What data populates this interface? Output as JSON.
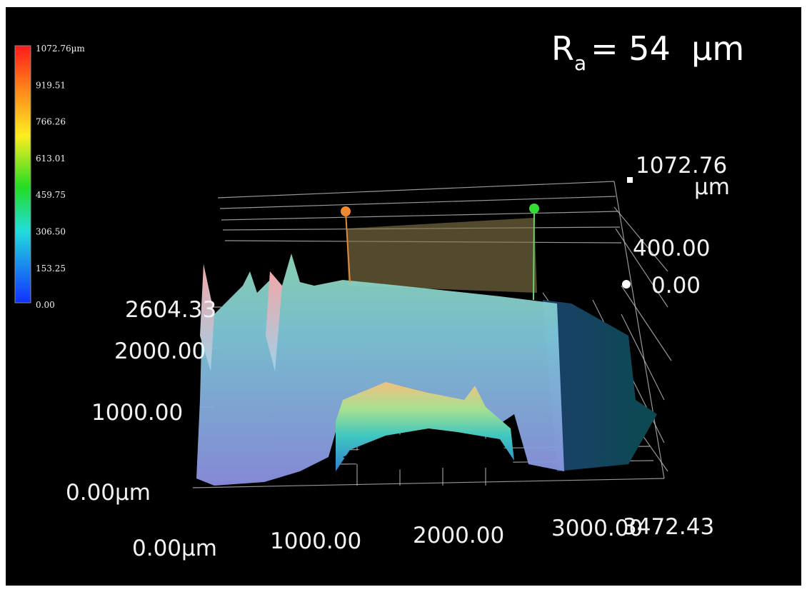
{
  "title": {
    "symbol": "R",
    "subscript": "a",
    "value": "= 54  µm"
  },
  "colorbar": {
    "labels": [
      "1072.76µm",
      "919.51",
      "766.26",
      "613.01",
      "459.75",
      "306.50",
      "153.25",
      "0.00"
    ]
  },
  "z_axis": {
    "labels": [
      "1072.76",
      "µm",
      "400.00",
      "0.00"
    ]
  },
  "y_axis": {
    "labels": [
      "2604.33",
      "2000.00",
      "1000.00",
      "0.00µm"
    ]
  },
  "x_axis": {
    "labels": [
      "0.00µm",
      "1000.00",
      "2000.00",
      "3000.00",
      "3472.43"
    ]
  }
}
